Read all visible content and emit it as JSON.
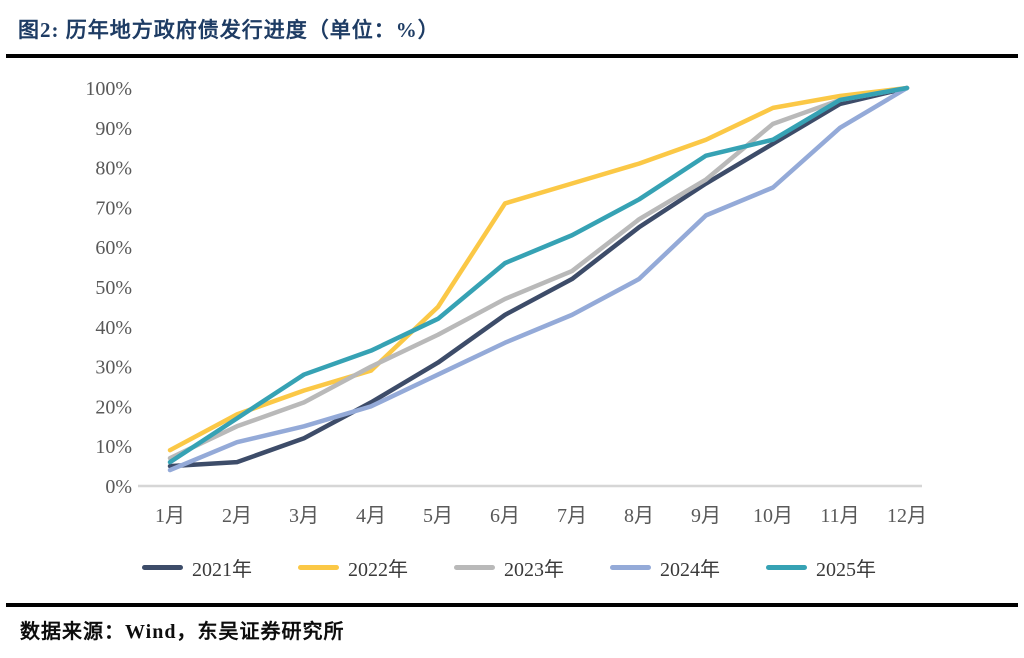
{
  "header": {
    "title": "图2:  历年地方政府债发行进度（单位：%）"
  },
  "chart_data": {
    "type": "line",
    "title": "历年地方政府债发行进度",
    "unit": "%",
    "categories": [
      "1月",
      "2月",
      "3月",
      "4月",
      "5月",
      "6月",
      "7月",
      "8月",
      "9月",
      "10月",
      "11月",
      "12月"
    ],
    "series": [
      {
        "name": "2021年",
        "color": "#3d4c69",
        "values": [
          5,
          6,
          12,
          21,
          31,
          43,
          52,
          65,
          76,
          86,
          96,
          100
        ]
      },
      {
        "name": "2022年",
        "color": "#fbc846",
        "values": [
          9,
          18,
          24,
          29,
          45,
          71,
          76,
          81,
          87,
          95,
          98,
          100
        ]
      },
      {
        "name": "2023年",
        "color": "#b9b9b9",
        "values": [
          7,
          15,
          21,
          30,
          38,
          47,
          54,
          67,
          77,
          91,
          97,
          100
        ]
      },
      {
        "name": "2024年",
        "color": "#94aad8",
        "values": [
          4,
          11,
          15,
          20,
          28,
          36,
          43,
          52,
          68,
          75,
          90,
          100
        ]
      },
      {
        "name": "2025年",
        "color": "#36a2b4",
        "values": [
          6,
          17,
          28,
          34,
          42,
          56,
          63,
          72,
          83,
          87,
          97,
          100
        ]
      }
    ],
    "ylim": [
      0,
      100
    ],
    "yticks": [
      "0%",
      "10%",
      "20%",
      "30%",
      "40%",
      "50%",
      "60%",
      "70%",
      "80%",
      "90%",
      "100%"
    ],
    "grid": false,
    "legend_position": "bottom"
  },
  "footer": {
    "source": "数据来源：Wind，东吴证券研究所"
  },
  "colors": {
    "title_text": "#1e3c64",
    "axis_text": "#595959",
    "baseline": "#d6d6d6",
    "divider": "#000000"
  }
}
